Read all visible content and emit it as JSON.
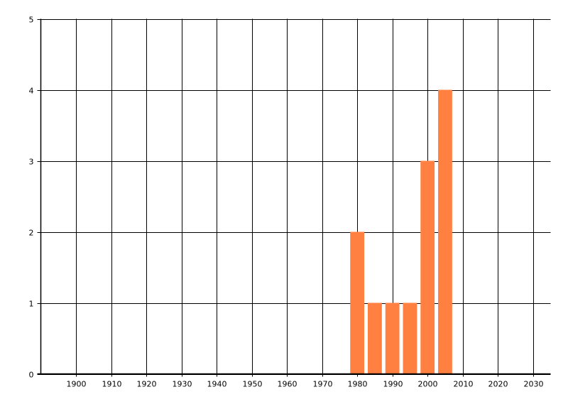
{
  "chart_data": {
    "type": "bar",
    "title": "",
    "xlabel": "",
    "ylabel": "",
    "x": [
      1980,
      1985,
      1990,
      1995,
      2000,
      2005
    ],
    "values": [
      2,
      1,
      1,
      1,
      3,
      4
    ],
    "bar_width_years": 4,
    "xlim": [
      1890,
      2035
    ],
    "ylim": [
      0,
      5
    ],
    "xticks": [
      1900,
      1910,
      1920,
      1930,
      1940,
      1950,
      1960,
      1970,
      1980,
      1990,
      2000,
      2010,
      2020,
      2030
    ],
    "yticks": [
      0,
      1,
      2,
      3,
      4,
      5
    ],
    "grid": true,
    "legend": "none",
    "colors": {
      "bar": "#FF8040",
      "grid": "#000000",
      "background": "#FFFFFF"
    }
  }
}
